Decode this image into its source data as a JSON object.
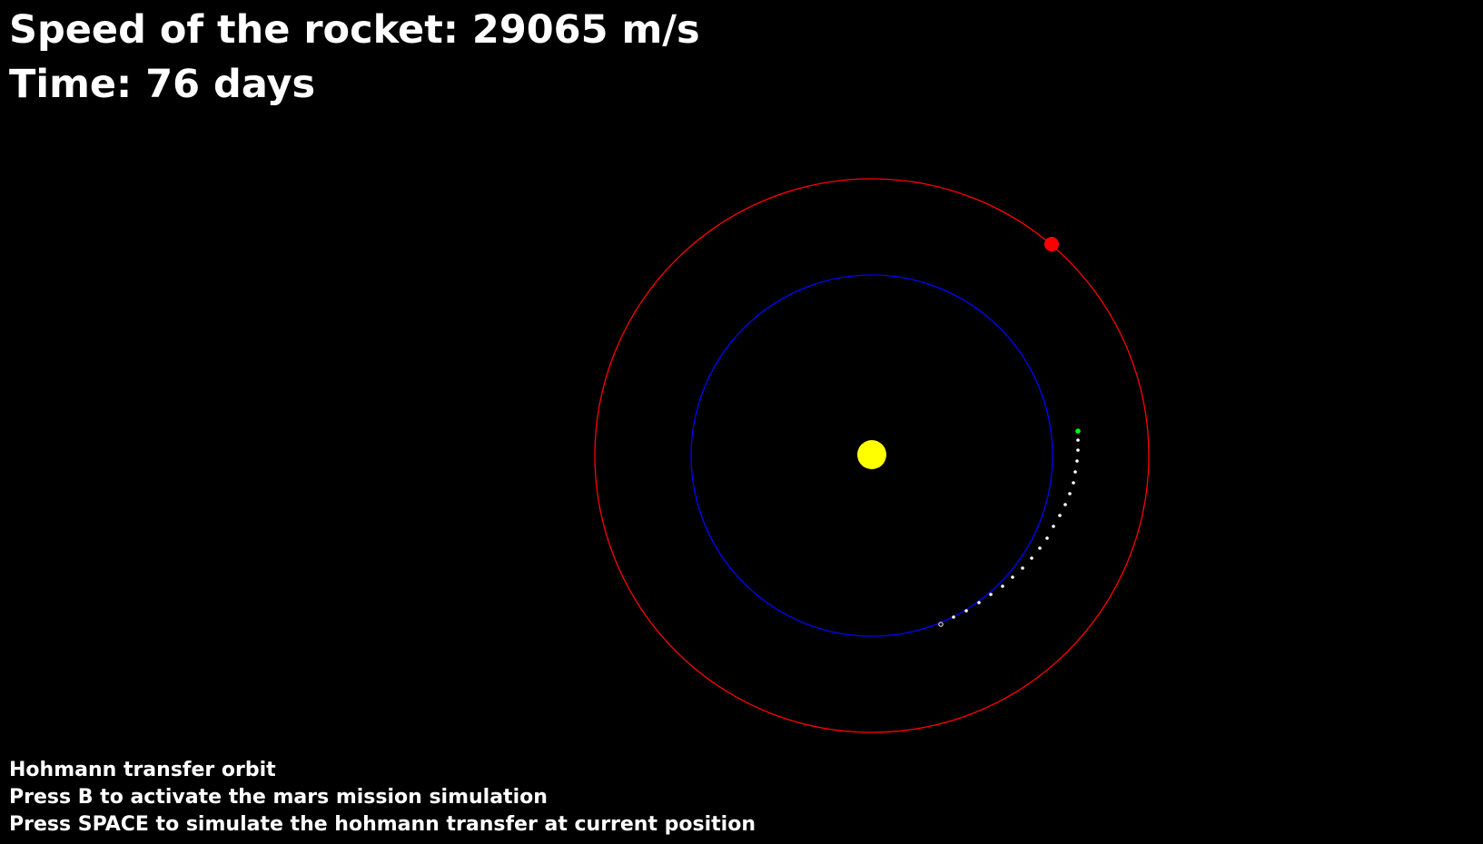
{
  "hud": {
    "speed_label": "Speed of the rocket: ",
    "speed_value": "29065",
    "speed_unit": " m/s",
    "time_label": "Time: ",
    "time_value": "76",
    "time_unit": " days"
  },
  "instructions": {
    "mode": "Hohmann transfer orbit",
    "key_b": "Press B to activate the mars mission simulation",
    "key_space": "Press SPACE to simulate the hohmann transfer at current position"
  },
  "scene": {
    "colors": {
      "background": "#000000",
      "sun": "#ffff00",
      "earth_orbit": "#0000ff",
      "mars_orbit": "#ff0000",
      "mars": "#ff0000",
      "trail": "#ffffff",
      "rocket": "#00ff00"
    },
    "bodies": [
      "sun",
      "earth-orbit",
      "mars-orbit",
      "mars",
      "rocket",
      "rocket-trail"
    ]
  }
}
